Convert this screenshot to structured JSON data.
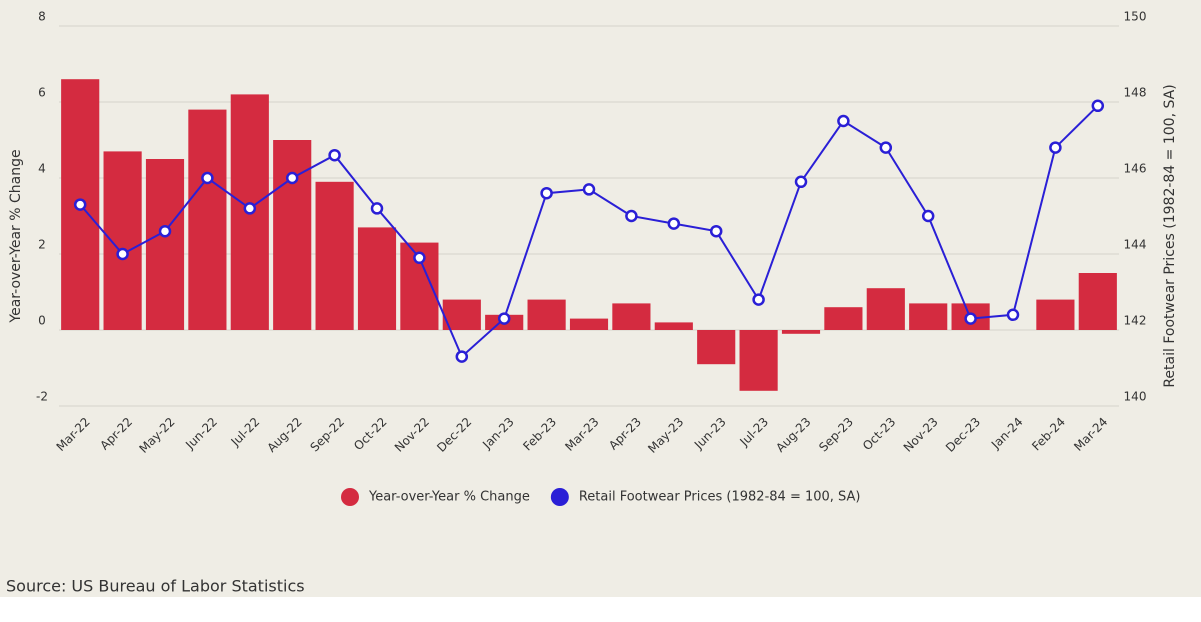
{
  "chart_data": {
    "type": "bar-line",
    "categories": [
      "Mar-22",
      "Apr-22",
      "May-22",
      "Jun-22",
      "Jul-22",
      "Aug-22",
      "Sep-22",
      "Oct-22",
      "Nov-22",
      "Dec-22",
      "Jan-23",
      "Feb-23",
      "Mar-23",
      "Apr-23",
      "May-23",
      "Jun-23",
      "Jul-23",
      "Aug-23",
      "Sep-23",
      "Oct-23",
      "Nov-23",
      "Dec-23",
      "Jan-24",
      "Feb-24",
      "Mar-24"
    ],
    "series": [
      {
        "name": "Year-over-Year % Change",
        "color": "#d42b40",
        "type": "bar",
        "values": [
          6.6,
          4.7,
          4.5,
          5.8,
          6.2,
          5.0,
          3.9,
          2.7,
          2.3,
          0.8,
          0.4,
          0.8,
          0.3,
          0.7,
          0.2,
          -0.9,
          -1.6,
          -0.1,
          0.6,
          1.1,
          0.7,
          0.7,
          0,
          0.8,
          1.5
        ]
      },
      {
        "name": "Retail Footwear Prices (1982-84 = 100, SA)",
        "color": "#2a1fd6",
        "type": "line",
        "axis": "y2",
        "values": [
          145.3,
          144.0,
          144.6,
          146.0,
          145.2,
          146.0,
          146.6,
          145.2,
          143.9,
          141.3,
          142.3,
          145.6,
          145.7,
          145.0,
          144.8,
          144.6,
          142.8,
          145.9,
          147.5,
          146.8,
          145.0,
          142.3,
          142.4,
          146.8,
          147.9
        ]
      }
    ],
    "ylabel": "Year-over-Year % Change",
    "y2label": "Retail Footwear Prices (1982-84 = 100, SA)",
    "ylim": [
      -2,
      8
    ],
    "yticks": [
      -2,
      0,
      2,
      4,
      6,
      8
    ],
    "y2lim": [
      140,
      150
    ],
    "y2ticks": [
      140,
      142,
      144,
      146,
      148,
      150
    ],
    "grid": true,
    "legend": "bottom",
    "source": "Source:  US Bureau of Labor Statistics"
  }
}
